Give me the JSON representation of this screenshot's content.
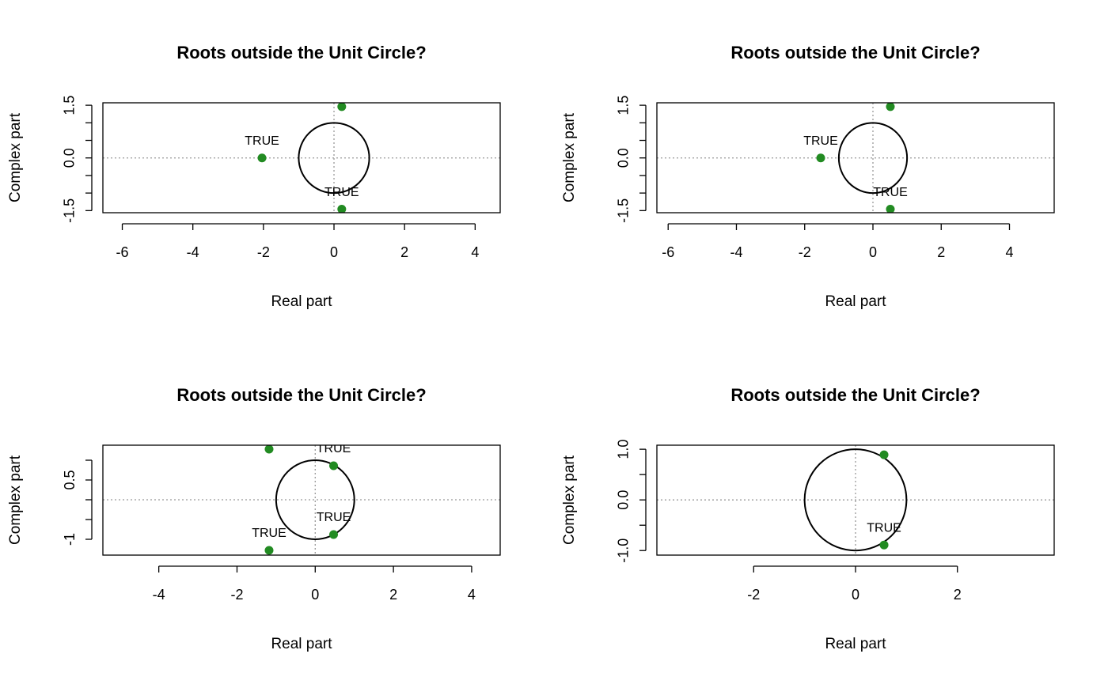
{
  "chart_data": [
    {
      "type": "scatter",
      "title": "Roots outside the Unit Circle?",
      "xlabel": "Real part",
      "ylabel": "Complex part",
      "x": [
        -2.04,
        0.22,
        0.22
      ],
      "y": [
        0,
        1.46,
        -1.46
      ],
      "point_labels": [
        "TRUE",
        null,
        "TRUE"
      ],
      "color": "#228b22",
      "xlim": [
        -6.55,
        4.71
      ],
      "ylim": [
        -1.56,
        1.57
      ],
      "xticks": [
        -6,
        -4,
        -2,
        0,
        2,
        4
      ],
      "yticks": [
        -1.5,
        {
          "value": -1,
          "label": null
        },
        {
          "value": -0.5,
          "label": null
        },
        {
          "value": 0,
          "label": "0.0"
        },
        {
          "value": 0.5,
          "label": null
        },
        {
          "value": 1,
          "label": null
        },
        1.5
      ],
      "circle_radius": 1,
      "hline": 0,
      "vline": 0
    },
    {
      "type": "scatter",
      "title": "Roots outside the Unit Circle?",
      "xlabel": "Real part",
      "ylabel": "Complex part",
      "x": [
        -1.53,
        0.51,
        0.51
      ],
      "y": [
        0,
        1.46,
        -1.46
      ],
      "point_labels": [
        "TRUE",
        null,
        "TRUE"
      ],
      "color": "#228b22",
      "xlim": [
        -6.33,
        5.31
      ],
      "ylim": [
        -1.56,
        1.57
      ],
      "xticks": [
        -6,
        -4,
        -2,
        0,
        2,
        4
      ],
      "yticks": [
        -1.5,
        {
          "value": -1,
          "label": null
        },
        {
          "value": -0.5,
          "label": null
        },
        {
          "value": 0,
          "label": "0.0"
        },
        {
          "value": 0.5,
          "label": null
        },
        {
          "value": 1,
          "label": null
        },
        1.5
      ],
      "circle_radius": 1,
      "hline": 0,
      "vline": 0
    },
    {
      "type": "scatter",
      "title": "Roots outside the Unit Circle?",
      "xlabel": "Real part",
      "ylabel": "Complex part",
      "x": [
        -1.18,
        0.47,
        0.47,
        -1.18
      ],
      "y": [
        1.28,
        0.86,
        -0.88,
        -1.28
      ],
      "point_labels": [
        null,
        "TRUE",
        "TRUE",
        "TRUE"
      ],
      "color": "#228b22",
      "xlim": [
        -5.43,
        4.73
      ],
      "ylim": [
        -1.4,
        1.38
      ],
      "xticks": [
        -4,
        -2,
        0,
        2,
        4
      ],
      "yticks": [
        -1.0,
        {
          "value": -0.5,
          "label": null
        },
        {
          "value": 0,
          "label": null
        },
        0.5,
        {
          "value": 1,
          "label": null
        }
      ],
      "circle_radius": 1,
      "hline": 0,
      "vline": 0
    },
    {
      "type": "scatter",
      "title": "Roots outside the Unit Circle?",
      "xlabel": "Real part",
      "ylabel": "Complex part",
      "x": [
        0.56,
        0.56
      ],
      "y": [
        0.89,
        -0.89
      ],
      "point_labels": [
        null,
        "TRUE"
      ],
      "color": "#228b22",
      "xlim": [
        -3.9,
        3.9
      ],
      "ylim": [
        -1.09,
        1.08
      ],
      "xticks": [
        -2,
        0,
        2
      ],
      "yticks": [
        {
          "value": -1,
          "label": "-1.0"
        },
        {
          "value": -0.5,
          "label": null
        },
        {
          "value": 0,
          "label": "0.0"
        },
        {
          "value": 0.5,
          "label": null
        },
        {
          "value": 1,
          "label": "1.0"
        }
      ],
      "circle_radius": 1,
      "hline": 0,
      "vline": 0
    }
  ]
}
